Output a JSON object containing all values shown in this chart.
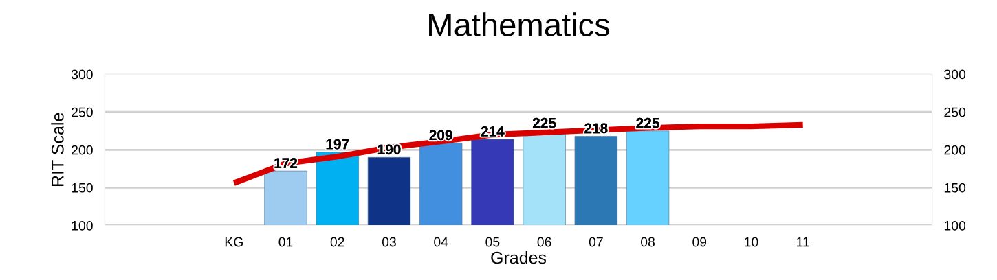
{
  "chart_data": {
    "type": "bar",
    "title": "Mathematics",
    "xlabel": "Grades",
    "ylabel": "RIT Scale",
    "categories": [
      null,
      null,
      "KG",
      "01",
      "02",
      "03",
      "04",
      "05",
      "06",
      "07",
      "08",
      "09",
      "10",
      "11",
      null,
      null
    ],
    "series": [
      {
        "colors": [
          null,
          null,
          null,
          "#9ecbf0",
          "#00b0f0",
          "#0f3386",
          "#418fde",
          "#3639b5",
          "#a3e2f8",
          "#2b78b4",
          "#66d1ff",
          null,
          null,
          null,
          null,
          null
        ],
        "values": [
          null,
          null,
          null,
          172,
          197,
          190,
          209,
          214,
          225,
          218,
          225,
          null,
          null,
          null,
          null,
          null
        ],
        "data_labels": true
      },
      {
        "type": "line",
        "color": "#d90000",
        "values": [
          null,
          null,
          156,
          182,
          191,
          203,
          211,
          220,
          223,
          226,
          229,
          231,
          231,
          233,
          null,
          null
        ]
      }
    ],
    "ylim": [
      100,
      300
    ],
    "yticks": [
      100,
      150,
      200,
      250,
      300
    ],
    "y2lim": [
      100,
      300
    ],
    "y2ticks": [
      100,
      150,
      200,
      250,
      300
    ],
    "grid": "y",
    "legend": false
  }
}
